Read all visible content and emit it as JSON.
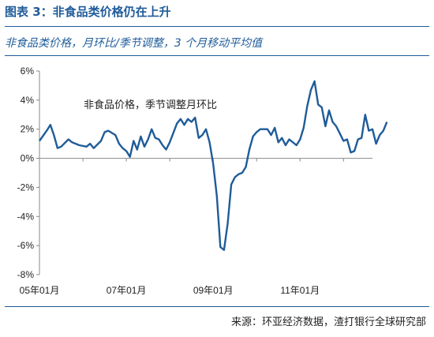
{
  "title": "图表 3：非食品类价格仍在上升",
  "subtitle": "非食品类价格，月环比/季节调整，3 个月移动平均值",
  "source": "来源：环亚经济数据，渣打银行全球研究部",
  "colors": {
    "line": "#1f5c99",
    "rule": "#1f5c99",
    "axis": "#888888"
  },
  "chart_data": {
    "type": "line",
    "annotation": "非食品价格，季节调整月环比",
    "x_tick_labels": [
      "05年01月",
      "07年01月",
      "09年01月",
      "11年01月"
    ],
    "y_tick_labels": [
      "-8%",
      "-6%",
      "-4%",
      "-2%",
      "0%",
      "2%",
      "4%",
      "6%"
    ],
    "y_ticks": [
      -8,
      -6,
      -4,
      -2,
      0,
      2,
      4,
      6
    ],
    "ylim": [
      -8,
      6
    ],
    "x_range": [
      "2005-01",
      "2012-09"
    ],
    "grid": false,
    "series": [
      {
        "unit": "%",
        "points": [
          [
            "2005-01",
            1.2
          ],
          [
            "2005-03",
            1.9
          ],
          [
            "2005-04",
            2.3
          ],
          [
            "2005-05",
            1.6
          ],
          [
            "2005-06",
            0.7
          ],
          [
            "2005-07",
            0.8
          ],
          [
            "2005-09",
            1.3
          ],
          [
            "2005-10",
            1.1
          ],
          [
            "2005-12",
            0.9
          ],
          [
            "2006-02",
            0.8
          ],
          [
            "2006-03",
            1.0
          ],
          [
            "2006-04",
            0.7
          ],
          [
            "2006-06",
            1.2
          ],
          [
            "2006-07",
            1.8
          ],
          [
            "2006-08",
            1.9
          ],
          [
            "2006-10",
            1.6
          ],
          [
            "2006-11",
            1.0
          ],
          [
            "2006-12",
            0.7
          ],
          [
            "2007-01",
            0.5
          ],
          [
            "2007-02",
            0.1
          ],
          [
            "2007-03",
            1.2
          ],
          [
            "2007-04",
            0.6
          ],
          [
            "2007-05",
            1.5
          ],
          [
            "2007-06",
            0.8
          ],
          [
            "2007-07",
            1.3
          ],
          [
            "2007-08",
            2.0
          ],
          [
            "2007-09",
            1.4
          ],
          [
            "2007-10",
            1.3
          ],
          [
            "2007-11",
            0.9
          ],
          [
            "2007-12",
            0.6
          ],
          [
            "2008-01",
            1.1
          ],
          [
            "2008-03",
            2.4
          ],
          [
            "2008-04",
            2.7
          ],
          [
            "2008-05",
            2.3
          ],
          [
            "2008-06",
            2.7
          ],
          [
            "2008-07",
            2.5
          ],
          [
            "2008-08",
            2.8
          ],
          [
            "2008-09",
            1.4
          ],
          [
            "2008-10",
            1.6
          ],
          [
            "2008-11",
            2.0
          ],
          [
            "2008-12",
            1.1
          ],
          [
            "2009-01",
            -0.4
          ],
          [
            "2009-02",
            -2.6
          ],
          [
            "2009-03",
            -6.1
          ],
          [
            "2009-04",
            -6.3
          ],
          [
            "2009-05",
            -4.5
          ],
          [
            "2009-06",
            -1.8
          ],
          [
            "2009-07",
            -1.3
          ],
          [
            "2009-08",
            -1.1
          ],
          [
            "2009-09",
            -1.0
          ],
          [
            "2009-10",
            -0.6
          ],
          [
            "2009-11",
            0.6
          ],
          [
            "2009-12",
            1.5
          ],
          [
            "2010-01",
            1.8
          ],
          [
            "2010-02",
            2.0
          ],
          [
            "2010-04",
            2.0
          ],
          [
            "2010-05",
            1.6
          ],
          [
            "2010-06",
            2.1
          ],
          [
            "2010-07",
            1.1
          ],
          [
            "2010-08",
            1.4
          ],
          [
            "2010-09",
            0.9
          ],
          [
            "2010-10",
            1.3
          ],
          [
            "2010-12",
            0.9
          ],
          [
            "2011-01",
            1.3
          ],
          [
            "2011-02",
            2.1
          ],
          [
            "2011-03",
            3.6
          ],
          [
            "2011-04",
            4.7
          ],
          [
            "2011-05",
            5.3
          ],
          [
            "2011-06",
            3.7
          ],
          [
            "2011-07",
            3.5
          ],
          [
            "2011-08",
            2.2
          ],
          [
            "2011-09",
            3.3
          ],
          [
            "2011-10",
            2.5
          ],
          [
            "2011-11",
            2.2
          ],
          [
            "2011-12",
            1.7
          ],
          [
            "2012-01",
            1.2
          ],
          [
            "2012-02",
            1.3
          ],
          [
            "2012-03",
            0.4
          ],
          [
            "2012-04",
            0.5
          ],
          [
            "2012-05",
            1.3
          ],
          [
            "2012-06",
            1.4
          ],
          [
            "2012-07",
            3.0
          ],
          [
            "2012-08",
            1.9
          ],
          [
            "2012-09",
            2.0
          ],
          [
            "2012-10",
            1.0
          ],
          [
            "2012-11",
            1.6
          ],
          [
            "2012-12",
            1.9
          ],
          [
            "2013-01",
            2.5
          ]
        ]
      }
    ]
  }
}
